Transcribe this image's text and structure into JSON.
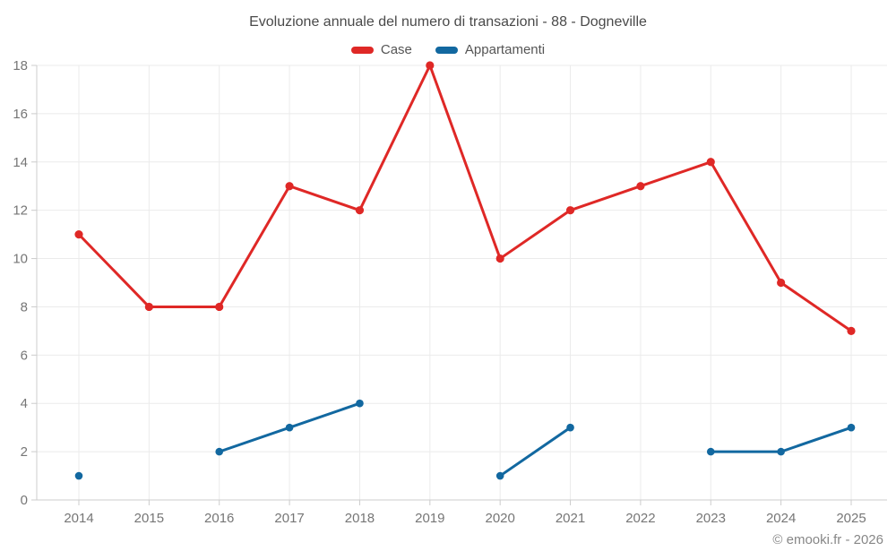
{
  "header": {
    "title": "Evoluzione annuale del numero di transazioni - 88 - Dogneville"
  },
  "footer": {
    "copyright": "© emooki.fr - 2026"
  },
  "style": {
    "grid_color": "#ebebeb",
    "axis_color": "#cccccc",
    "tick_label_color": "#767676"
  },
  "chart_data": {
    "type": "line",
    "title": "Evoluzione annuale del numero di transazioni - 88 - Dogneville",
    "x": [
      2014,
      2015,
      2016,
      2017,
      2018,
      2019,
      2020,
      2021,
      2022,
      2023,
      2024,
      2025
    ],
    "series": [
      {
        "name": "Case",
        "color": "#df2826",
        "values": [
          11,
          8,
          8,
          13,
          12,
          18,
          10,
          12,
          13,
          14,
          9,
          7
        ]
      },
      {
        "name": "Appartamenti",
        "color": "#1268a0",
        "values": [
          1,
          null,
          2,
          3,
          4,
          null,
          1,
          3,
          null,
          2,
          2,
          3
        ]
      }
    ],
    "xlabel": "",
    "ylabel": "",
    "ylim": [
      0,
      18
    ],
    "yticks": [
      0,
      2,
      4,
      6,
      8,
      10,
      12,
      14,
      16,
      18
    ],
    "grid": true,
    "legend_position": "top"
  }
}
